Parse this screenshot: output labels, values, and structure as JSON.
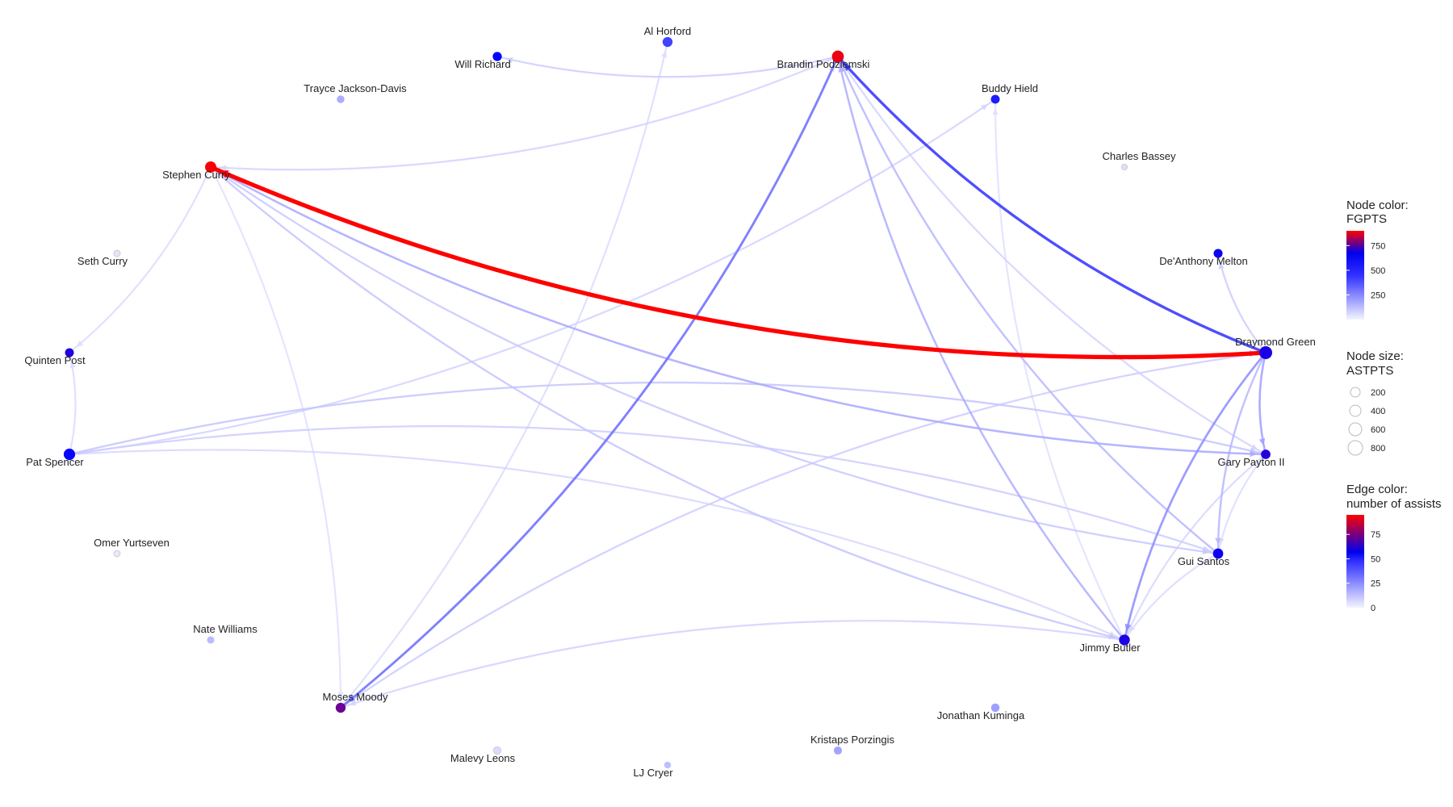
{
  "chart_data": {
    "type": "network",
    "nodes": [
      {
        "name": "Al Horford",
        "fgpts": 380,
        "astpts": 300
      },
      {
        "name": "Will Richard",
        "fgpts": 520,
        "astpts": 230
      },
      {
        "name": "Brandin Podziemski",
        "fgpts": 870,
        "astpts": 500
      },
      {
        "name": "Buddy Hield",
        "fgpts": 460,
        "astpts": 210
      },
      {
        "name": "Trayce Jackson-Davis",
        "fgpts": 150,
        "astpts": 130
      },
      {
        "name": "Charles Bassey",
        "fgpts": 40,
        "astpts": 40
      },
      {
        "name": "Stephen Curry",
        "fgpts": 890,
        "astpts": 430
      },
      {
        "name": "Seth Curry",
        "fgpts": 30,
        "astpts": 70
      },
      {
        "name": "De'Anthony Melton",
        "fgpts": 540,
        "astpts": 220
      },
      {
        "name": "Draymond Green",
        "fgpts": 560,
        "astpts": 620
      },
      {
        "name": "Quinten Post",
        "fgpts": 570,
        "astpts": 210
      },
      {
        "name": "Pat Spencer",
        "fgpts": 510,
        "astpts": 450
      },
      {
        "name": "Gary Payton II",
        "fgpts": 580,
        "astpts": 260
      },
      {
        "name": "Omer Yurtseven",
        "fgpts": 20,
        "astpts": 60
      },
      {
        "name": "Gui Santos",
        "fgpts": 540,
        "astpts": 330
      },
      {
        "name": "Nate Williams",
        "fgpts": 120,
        "astpts": 110
      },
      {
        "name": "Jimmy Butler",
        "fgpts": 560,
        "astpts": 380
      },
      {
        "name": "Moses Moody",
        "fgpts": 680,
        "astpts": 300
      },
      {
        "name": "Jonathan Kuminga",
        "fgpts": 180,
        "astpts": 180
      },
      {
        "name": "Kristaps Porzingis",
        "fgpts": 170,
        "astpts": 160
      },
      {
        "name": "Malevy Leons",
        "fgpts": 50,
        "astpts": 120
      },
      {
        "name": "LJ Cryer",
        "fgpts": 110,
        "astpts": 90
      }
    ],
    "edges": [
      {
        "from": "Draymond Green",
        "to": "Stephen Curry",
        "assists": 98
      },
      {
        "from": "Draymond Green",
        "to": "Brandin Podziemski",
        "assists": 42
      },
      {
        "from": "Brandin Podziemski",
        "to": "Moses Moody",
        "assists": 28
      },
      {
        "from": "Stephen Curry",
        "to": "Draymond Green",
        "assists": 20
      },
      {
        "from": "Draymond Green",
        "to": "Jimmy Butler",
        "assists": 22
      },
      {
        "from": "Draymond Green",
        "to": "Gary Payton II",
        "assists": 18
      },
      {
        "from": "Stephen Curry",
        "to": "Gary Payton II",
        "assists": 16
      },
      {
        "from": "Jimmy Butler",
        "to": "Brandin Podziemski",
        "assists": 15
      },
      {
        "from": "Gui Santos",
        "to": "Brandin Podziemski",
        "assists": 13
      },
      {
        "from": "Draymond Green",
        "to": "Gui Santos",
        "assists": 13
      },
      {
        "from": "Pat Spencer",
        "to": "Gary Payton II",
        "assists": 10
      },
      {
        "from": "Stephen Curry",
        "to": "Jimmy Butler",
        "assists": 10
      },
      {
        "from": "Stephen Curry",
        "to": "Gui Santos",
        "assists": 9
      },
      {
        "from": "Draymond Green",
        "to": "De'Anthony Melton",
        "assists": 8
      },
      {
        "from": "Pat Spencer",
        "to": "Gui Santos",
        "assists": 8
      },
      {
        "from": "Draymond Green",
        "to": "Moses Moody",
        "assists": 8
      },
      {
        "from": "Brandin Podziemski",
        "to": "Will Richard",
        "assists": 8
      },
      {
        "from": "Brandin Podziemski",
        "to": "Stephen Curry",
        "assists": 7
      },
      {
        "from": "Pat Spencer",
        "to": "Buddy Hield",
        "assists": 7
      },
      {
        "from": "Jimmy Butler",
        "to": "Moses Moody",
        "assists": 7
      },
      {
        "from": "Brandin Podziemski",
        "to": "Gary Payton II",
        "assists": 7
      },
      {
        "from": "Pat Spencer",
        "to": "Jimmy Butler",
        "assists": 6
      },
      {
        "from": "Moses Moody",
        "to": "Brandin Podziemski",
        "assists": 6
      },
      {
        "from": "Gary Payton II",
        "to": "Jimmy Butler",
        "assists": 6
      },
      {
        "from": "Stephen Curry",
        "to": "Quinten Post",
        "assists": 5
      },
      {
        "from": "Pat Spencer",
        "to": "Quinten Post",
        "assists": 5
      },
      {
        "from": "Moses Moody",
        "to": "Al Horford",
        "assists": 5
      },
      {
        "from": "Gui Santos",
        "to": "Jimmy Butler",
        "assists": 5
      },
      {
        "from": "Gary Payton II",
        "to": "Gui Santos",
        "assists": 5
      },
      {
        "from": "Stephen Curry",
        "to": "Moses Moody",
        "assists": 4
      },
      {
        "from": "Jimmy Butler",
        "to": "Buddy Hield",
        "assists": 4
      }
    ]
  },
  "legend": {
    "node_color": {
      "title_line1": "Node color:",
      "title_line2": "FGPTS",
      "ticks": [
        "750",
        "500",
        "250"
      ],
      "tick_values": [
        750,
        500,
        250
      ],
      "range": [
        0,
        900
      ]
    },
    "node_size": {
      "title_line1": "Node size:",
      "title_line2": "ASTPTS",
      "ticks": [
        "200",
        "400",
        "600",
        "800"
      ]
    },
    "edge_color": {
      "title_line1": "Edge color:",
      "title_line2": "number of assists",
      "ticks": [
        "75",
        "50",
        "25",
        "0"
      ],
      "tick_values": [
        75,
        50,
        25,
        0
      ],
      "range": [
        0,
        95
      ]
    }
  },
  "colors": {
    "low": "#f2f2ff",
    "mid": "#0000ff",
    "high": "#ff0000"
  }
}
